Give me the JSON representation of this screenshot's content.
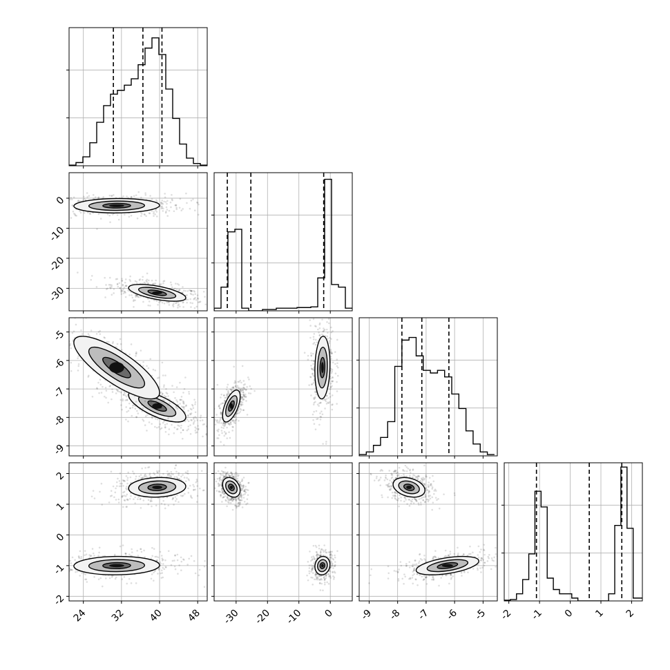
{
  "chart_data": {
    "type": "corner",
    "title": "",
    "parameters": [
      {
        "ylim": [
          0,
          1
        ],
        "xlim": [
          21,
          50
        ],
        "ticks": [
          24,
          32,
          40,
          48
        ],
        "tick_labels": [
          "24",
          "32",
          "40",
          "48"
        ],
        "quantiles": [
          30.3,
          36.5,
          40.5
        ],
        "hist_edges": [
          21,
          22.45,
          23.9,
          25.35,
          26.8,
          28.25,
          29.7,
          31.15,
          32.6,
          34.05,
          35.5,
          36.95,
          38.4,
          39.85,
          41.3,
          42.75,
          44.2,
          45.65,
          47.1,
          48.55,
          50
        ],
        "hist_values": [
          0.005,
          0.025,
          0.07,
          0.18,
          0.34,
          0.47,
          0.56,
          0.59,
          0.63,
          0.68,
          0.79,
          0.92,
          1.0,
          0.87,
          0.6,
          0.37,
          0.17,
          0.06,
          0.018,
          0.005
        ],
        "hist_ymax": 1.08
      },
      {
        "xlim": [
          -37,
          7
        ],
        "ylim": [
          -37.5,
          8.5
        ],
        "ticks": [
          -30,
          -20,
          -10,
          0
        ],
        "tick_labels": [
          "-30",
          "-20",
          "-10",
          "0"
        ],
        "quantiles": [
          -32.8,
          -25.3,
          -2.1
        ],
        "hist_edges": [
          -37,
          -34.8,
          -32.6,
          -30.4,
          -28.2,
          -26,
          -23.8,
          -21.6,
          -19.4,
          -17.2,
          -15,
          -12.8,
          -10.6,
          -8.4,
          -6.2,
          -4,
          -1.8,
          0.4,
          2.6,
          4.8,
          7
        ],
        "hist_values": [
          0.02,
          0.18,
          0.6,
          0.62,
          0.02,
          0.0,
          0.0,
          0.01,
          0.01,
          0.02,
          0.02,
          0.02,
          0.025,
          0.025,
          0.03,
          0.25,
          1.0,
          0.2,
          0.18,
          0.02
        ],
        "hist_ymax": 1.05
      },
      {
        "xlim": [
          -9.35,
          -4.5
        ],
        "ylim": [
          -9.35,
          -4.5
        ],
        "ticks": [
          -9,
          -8,
          -7,
          -6,
          -5
        ],
        "tick_labels": [
          "-9",
          "-8",
          "-7",
          "-6",
          "-5"
        ],
        "quantiles": [
          -7.85,
          -7.15,
          -6.2
        ],
        "hist_edges": [
          -9.35,
          -9.1,
          -8.85,
          -8.6,
          -8.35,
          -8.1,
          -7.85,
          -7.6,
          -7.35,
          -7.1,
          -6.85,
          -6.6,
          -6.35,
          -6.1,
          -5.85,
          -5.6,
          -5.35,
          -5.1,
          -4.85,
          -4.6
        ],
        "hist_values": [
          0.01,
          0.03,
          0.08,
          0.14,
          0.26,
          0.68,
          0.88,
          0.9,
          0.76,
          0.65,
          0.63,
          0.65,
          0.6,
          0.47,
          0.36,
          0.19,
          0.09,
          0.03,
          0.01
        ],
        "hist_ymax": 1.05
      },
      {
        "xlim": [
          -2.15,
          2.35
        ],
        "ylim": [
          -2.15,
          2.35
        ],
        "ticks": [
          -2,
          -1,
          0,
          1,
          2
        ],
        "tick_labels": [
          "-2",
          "-1",
          "0",
          "1",
          "2"
        ],
        "quantiles": [
          -1.1,
          0.62,
          1.68
        ],
        "hist_edges": [
          -2.15,
          -1.95,
          -1.75,
          -1.55,
          -1.35,
          -1.15,
          -0.95,
          -0.75,
          -0.55,
          -0.35,
          -0.15,
          0.05,
          0.25,
          0.45,
          0.65,
          0.85,
          1.05,
          1.25,
          1.45,
          1.65,
          1.85,
          2.05,
          2.35
        ],
        "hist_values": [
          0.005,
          0.01,
          0.05,
          0.15,
          0.33,
          0.77,
          0.66,
          0.16,
          0.08,
          0.05,
          0.05,
          0.02,
          0.0,
          0.0,
          0.0,
          0.0,
          0.0,
          0.05,
          0.53,
          0.94,
          0.51,
          0.02
        ],
        "hist_ymax": 0.97
      }
    ],
    "modes": [
      {
        "weight": 0.55,
        "mean": [
          39.5,
          -31.5,
          -7.6,
          1.55
        ]
      },
      {
        "weight": 0.45,
        "mean": [
          31.0,
          -2.5,
          -6.25,
          -1.0
        ]
      }
    ],
    "grid": true,
    "legend": "none"
  }
}
